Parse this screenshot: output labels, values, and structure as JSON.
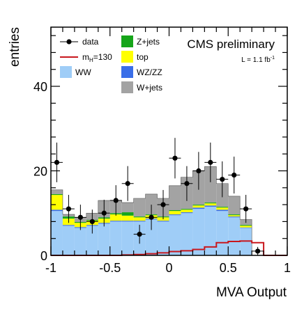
{
  "chart_data": {
    "type": "bar",
    "stacked": true,
    "xlabel": "MVA Output",
    "ylabel": "entries",
    "xlim": [
      -1,
      1
    ],
    "ylim": [
      0,
      54
    ],
    "x_ticks": [
      -1,
      -0.5,
      0,
      0.5,
      1
    ],
    "x_tick_labels": [
      "-1",
      "-0.5",
      "0",
      "0.5",
      "1"
    ],
    "y_ticks": [
      0,
      20,
      40
    ],
    "y_tick_labels": [
      "0",
      "20",
      "40"
    ],
    "bin_edges": [
      -1.0,
      -0.9,
      -0.8,
      -0.7,
      -0.6,
      -0.5,
      -0.4,
      -0.3,
      -0.2,
      -0.1,
      0.0,
      0.1,
      0.2,
      0.3,
      0.4,
      0.5,
      0.6,
      0.7,
      0.8,
      0.9,
      1.0
    ],
    "series": [
      {
        "name": "WW",
        "color": "#9fcdf7",
        "values": [
          10.5,
          7.0,
          6.5,
          7.0,
          7.5,
          8.0,
          8.0,
          8.0,
          8.5,
          8.0,
          9.5,
          10.0,
          11.0,
          11.5,
          10.5,
          9.0,
          6.5,
          0,
          0,
          0
        ]
      },
      {
        "name": "WZ/ZZ",
        "color": "#3a6ee8",
        "values": [
          0.3,
          0.2,
          0.2,
          0.2,
          0.2,
          0.2,
          0.2,
          0.2,
          0.2,
          0.2,
          0.2,
          0.2,
          0.3,
          0.3,
          0.3,
          0.2,
          0.1,
          0,
          0,
          0
        ]
      },
      {
        "name": "top",
        "color": "#ffff00",
        "values": [
          3.5,
          1.5,
          1.0,
          1.0,
          1.0,
          1.5,
          1.2,
          0.8,
          0.8,
          0.8,
          0.8,
          0.6,
          0.5,
          0.5,
          0.5,
          0.3,
          0.4,
          0,
          0,
          0
        ]
      },
      {
        "name": "Z+jets",
        "color": "#16a51a",
        "values": [
          0.2,
          0.5,
          0.2,
          0.2,
          0.3,
          0.3,
          0.8,
          0.2,
          0.2,
          0.2,
          0.2,
          0.2,
          0.2,
          0.2,
          0.2,
          0.2,
          0.2,
          0,
          0,
          0
        ]
      },
      {
        "name": "W+jets",
        "color": "#a3a3a3",
        "values": [
          1.0,
          0.5,
          1.1,
          1.6,
          4.0,
          3.0,
          2.3,
          4.3,
          4.8,
          4.3,
          5.8,
          7.5,
          8.0,
          8.5,
          5.5,
          4.3,
          1.3,
          0,
          0,
          0
        ]
      }
    ],
    "signal": {
      "name": "m_H=130",
      "color": "#c8171d",
      "values": [
        0,
        0,
        0,
        0,
        0,
        0,
        0.1,
        0.2,
        0.4,
        0.6,
        0.9,
        1.1,
        1.4,
        2.0,
        3.0,
        3.3,
        3.4,
        3.0,
        0,
        0
      ]
    },
    "data_points": {
      "name": "data",
      "x": [
        -0.95,
        -0.85,
        -0.75,
        -0.65,
        -0.55,
        -0.45,
        -0.35,
        -0.25,
        -0.15,
        -0.05,
        0.05,
        0.15,
        0.25,
        0.35,
        0.45,
        0.55,
        0.65,
        0.75
      ],
      "y": [
        22,
        11,
        9,
        8,
        10,
        13,
        17,
        5,
        9,
        12,
        23,
        17,
        20,
        22,
        18,
        19,
        11,
        1
      ]
    },
    "legend": [
      {
        "label_main": "data",
        "label_sub": "",
        "label_tail": "",
        "kind": "point"
      },
      {
        "label_main": "Z+jets",
        "label_sub": "",
        "label_tail": "",
        "kind": "box",
        "color": "#16a51a"
      },
      {
        "label_main": "m",
        "label_sub": "H",
        "label_tail": "=130",
        "kind": "line",
        "color": "#c8171d"
      },
      {
        "label_main": "top",
        "label_sub": "",
        "label_tail": "",
        "kind": "box",
        "color": "#ffff00"
      },
      {
        "label_main": "WW",
        "label_sub": "",
        "label_tail": "",
        "kind": "box",
        "color": "#9fcdf7"
      },
      {
        "label_main": "WZ/ZZ",
        "label_sub": "",
        "label_tail": "",
        "kind": "box",
        "color": "#3a6ee8"
      },
      {
        "label_main": "",
        "label_sub": "",
        "label_tail": "",
        "kind": "none"
      },
      {
        "label_main": "W+jets",
        "label_sub": "",
        "label_tail": "",
        "kind": "box",
        "color": "#a3a3a3"
      }
    ],
    "annotations": {
      "experiment": "CMS preliminary",
      "lumi_main": "L = 1.1 fb",
      "lumi_sup": "-1"
    },
    "legend_placement": "top-left",
    "grid": false
  }
}
